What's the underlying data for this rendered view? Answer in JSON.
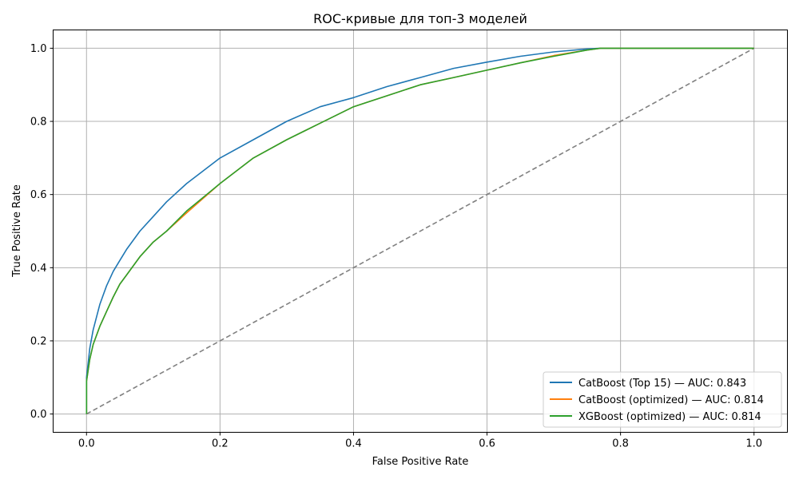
{
  "chart_data": {
    "type": "line",
    "title": "ROC-кривые для топ-3 моделей",
    "xlabel": "False Positive Rate",
    "ylabel": "True Positive Rate",
    "xlim": [
      -0.05,
      1.05
    ],
    "ylim": [
      -0.05,
      1.05
    ],
    "xticks": [
      "0.0",
      "0.2",
      "0.4",
      "0.6",
      "0.8",
      "1.0"
    ],
    "yticks": [
      "0.0",
      "0.2",
      "0.4",
      "0.6",
      "0.8",
      "1.0"
    ],
    "grid": true,
    "legend_position": "lower-right",
    "series": [
      {
        "name": "CatBoost (Top 15) — AUC: 0.843",
        "color": "#1f77b4",
        "x": [
          0.0,
          0.0,
          0.005,
          0.01,
          0.02,
          0.03,
          0.04,
          0.05,
          0.06,
          0.08,
          0.1,
          0.12,
          0.15,
          0.2,
          0.25,
          0.3,
          0.35,
          0.4,
          0.45,
          0.5,
          0.55,
          0.6,
          0.65,
          0.7,
          0.75,
          0.77,
          0.8,
          0.9,
          1.0
        ],
        "y": [
          0.0,
          0.1,
          0.18,
          0.23,
          0.3,
          0.35,
          0.39,
          0.42,
          0.45,
          0.5,
          0.54,
          0.58,
          0.63,
          0.7,
          0.75,
          0.8,
          0.84,
          0.865,
          0.895,
          0.92,
          0.945,
          0.962,
          0.978,
          0.99,
          0.998,
          1.0,
          1.0,
          1.0,
          1.0
        ]
      },
      {
        "name": "CatBoost (optimized) — AUC: 0.814",
        "color": "#ff7f0e",
        "x": [
          0.0,
          0.0,
          0.005,
          0.01,
          0.02,
          0.03,
          0.04,
          0.05,
          0.06,
          0.08,
          0.1,
          0.12,
          0.15,
          0.2,
          0.25,
          0.3,
          0.35,
          0.4,
          0.45,
          0.5,
          0.55,
          0.6,
          0.65,
          0.7,
          0.75,
          0.77,
          0.8,
          0.9,
          1.0
        ],
        "y": [
          0.0,
          0.09,
          0.15,
          0.19,
          0.24,
          0.28,
          0.32,
          0.355,
          0.38,
          0.43,
          0.47,
          0.5,
          0.55,
          0.63,
          0.7,
          0.75,
          0.795,
          0.84,
          0.87,
          0.9,
          0.92,
          0.94,
          0.96,
          0.98,
          0.995,
          1.0,
          1.0,
          1.0,
          1.0
        ]
      },
      {
        "name": "XGBoost (optimized) — AUC: 0.814",
        "color": "#2ca02c",
        "x": [
          0.0,
          0.0,
          0.005,
          0.01,
          0.02,
          0.03,
          0.04,
          0.05,
          0.06,
          0.08,
          0.1,
          0.12,
          0.15,
          0.2,
          0.25,
          0.3,
          0.35,
          0.4,
          0.45,
          0.5,
          0.55,
          0.6,
          0.65,
          0.7,
          0.75,
          0.77,
          0.8,
          0.9,
          1.0
        ],
        "y": [
          0.0,
          0.09,
          0.15,
          0.19,
          0.24,
          0.28,
          0.32,
          0.355,
          0.38,
          0.43,
          0.47,
          0.5,
          0.555,
          0.63,
          0.7,
          0.75,
          0.795,
          0.84,
          0.87,
          0.9,
          0.92,
          0.94,
          0.96,
          0.978,
          0.995,
          1.0,
          1.0,
          1.0,
          1.0
        ]
      }
    ],
    "reference_line": {
      "color": "#808080",
      "style": "dashed",
      "x": [
        0,
        1
      ],
      "y": [
        0,
        1
      ]
    }
  }
}
